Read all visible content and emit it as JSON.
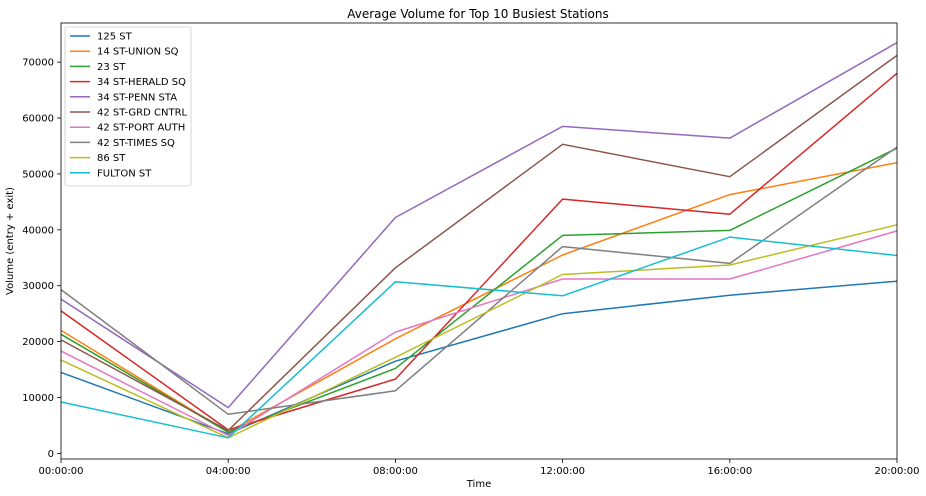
{
  "chart_data": {
    "type": "line",
    "title": "Average Volume for Top 10 Busiest Stations",
    "xlabel": "Time",
    "ylabel": "Volume (entry + exit)",
    "categories": [
      "00:00:00",
      "04:00:00",
      "08:00:00",
      "12:00:00",
      "16:00:00",
      "20:00:00"
    ],
    "ylim": [
      -1000,
      77000
    ],
    "yticks": [
      0,
      10000,
      20000,
      30000,
      40000,
      50000,
      60000,
      70000
    ],
    "grid": false,
    "legend": "top-left",
    "series": [
      {
        "name": "125 ST",
        "color": "#1f77b4",
        "values": [
          14500,
          3500,
          16500,
          25000,
          28300,
          30800
        ]
      },
      {
        "name": "14 ST-UNION SQ",
        "color": "#ff7f0e",
        "values": [
          22000,
          3800,
          20500,
          35500,
          46300,
          52000
        ]
      },
      {
        "name": "23 ST",
        "color": "#2ca02c",
        "values": [
          21300,
          3800,
          15200,
          39000,
          39900,
          54600
        ]
      },
      {
        "name": "34 ST-HERALD SQ",
        "color": "#d62728",
        "values": [
          25500,
          4200,
          13300,
          45500,
          42800,
          68000
        ]
      },
      {
        "name": "34 ST-PENN STA",
        "color": "#9467bd",
        "values": [
          27600,
          8200,
          42200,
          58500,
          56400,
          73500
        ]
      },
      {
        "name": "42 ST-GRD CNTRL",
        "color": "#8c564b",
        "values": [
          20300,
          4100,
          33200,
          55300,
          49500,
          71200
        ]
      },
      {
        "name": "42 ST-PORT AUTH",
        "color": "#e377c2",
        "values": [
          18300,
          3200,
          21700,
          31200,
          31200,
          39800
        ]
      },
      {
        "name": "42 ST-TIMES SQ",
        "color": "#7f7f7f",
        "values": [
          29300,
          7000,
          11200,
          37000,
          34000,
          54800
        ]
      },
      {
        "name": "86 ST",
        "color": "#bcbd22",
        "values": [
          16700,
          2800,
          17200,
          32000,
          33700,
          40900
        ]
      },
      {
        "name": "FULTON ST",
        "color": "#17becf",
        "values": [
          9200,
          2800,
          30700,
          28200,
          38700,
          35400
        ]
      }
    ]
  }
}
